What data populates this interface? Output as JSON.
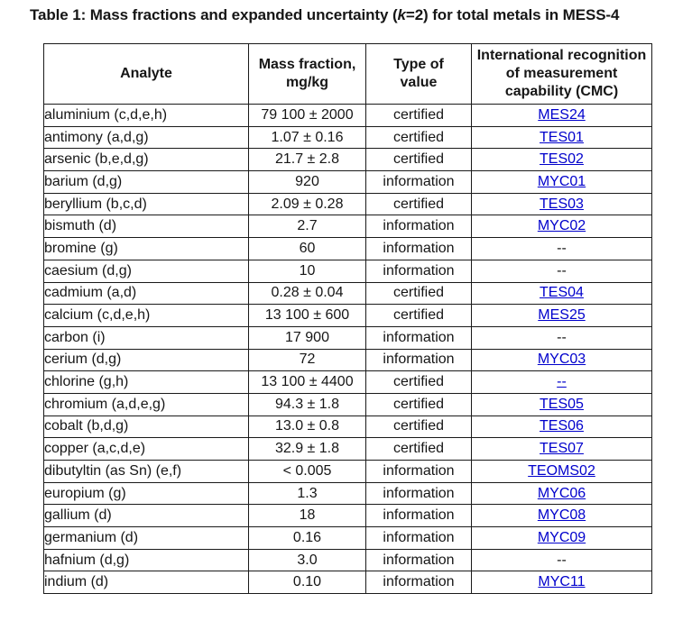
{
  "title": {
    "prefix": "Table 1: Mass fractions and expanded uncertainty (",
    "k": "k",
    "suffix": "=2) for total metals in MESS-4"
  },
  "colors": {
    "link_blue": "#0000cc",
    "text_black": "#161616",
    "border_black": "#1a1a1a",
    "background": "#ffffff"
  },
  "table": {
    "headers": {
      "analyte": "Analyte",
      "mass_fraction": "Mass fraction,\nmg/kg",
      "type_of_value": "Type of\nvalue",
      "cmc": "International recognition\nof measurement\ncapability (CMC)"
    },
    "rows": [
      {
        "analyte": "aluminium (c,d,e,h)",
        "mass_fraction": "79 100 ± 2000",
        "type_of_value": "certified",
        "cmc": "MES24",
        "cmc_is_link": true
      },
      {
        "analyte": "antimony (a,d,g)",
        "mass_fraction": "1.07 ± 0.16",
        "type_of_value": "certified",
        "cmc": "TES01",
        "cmc_is_link": true
      },
      {
        "analyte": "arsenic (b,e,d,g)",
        "mass_fraction": "21.7 ± 2.8",
        "type_of_value": "certified",
        "cmc": "TES02",
        "cmc_is_link": true
      },
      {
        "analyte": "barium (d,g)",
        "mass_fraction": "920",
        "type_of_value": "information",
        "cmc": "MYC01",
        "cmc_is_link": true
      },
      {
        "analyte": "beryllium (b,c,d)",
        "mass_fraction": "2.09 ± 0.28",
        "type_of_value": "certified",
        "cmc": "TES03",
        "cmc_is_link": true
      },
      {
        "analyte": "bismuth (d)",
        "mass_fraction": "2.7",
        "type_of_value": "information",
        "cmc": "MYC02",
        "cmc_is_link": true
      },
      {
        "analyte": "bromine (g)",
        "mass_fraction": "60",
        "type_of_value": "information",
        "cmc": "--",
        "cmc_is_link": false
      },
      {
        "analyte": "caesium (d,g)",
        "mass_fraction": "10",
        "type_of_value": "information",
        "cmc": "--",
        "cmc_is_link": false
      },
      {
        "analyte": "cadmium (a,d)",
        "mass_fraction": "0.28 ± 0.04",
        "type_of_value": "certified",
        "cmc": "TES04",
        "cmc_is_link": true
      },
      {
        "analyte": "calcium (c,d,e,h)",
        "mass_fraction": "13 100 ± 600",
        "type_of_value": "certified",
        "cmc": "MES25",
        "cmc_is_link": true
      },
      {
        "analyte": "carbon (i)",
        "mass_fraction": "17 900",
        "type_of_value": "information",
        "cmc": "--",
        "cmc_is_link": false
      },
      {
        "analyte": "cerium (d,g)",
        "mass_fraction": "72",
        "type_of_value": "information",
        "cmc": "MYC03",
        "cmc_is_link": true
      },
      {
        "analyte": "chlorine (g,h)",
        "mass_fraction": "13 100 ± 4400",
        "type_of_value": "certified",
        "cmc": "--",
        "cmc_is_link": true
      },
      {
        "analyte": "chromium (a,d,e,g)",
        "mass_fraction": "94.3 ± 1.8",
        "type_of_value": "certified",
        "cmc": "TES05",
        "cmc_is_link": true
      },
      {
        "analyte": "cobalt (b,d,g)",
        "mass_fraction": "13.0 ± 0.8",
        "type_of_value": "certified",
        "cmc": "TES06",
        "cmc_is_link": true
      },
      {
        "analyte": "copper (a,c,d,e)",
        "mass_fraction": "32.9 ± 1.8",
        "type_of_value": "certified",
        "cmc": "TES07",
        "cmc_is_link": true
      },
      {
        "analyte": "dibutyltin (as Sn) (e,f)",
        "mass_fraction": "< 0.005",
        "type_of_value": "information",
        "cmc": "TEOMS02",
        "cmc_is_link": true
      },
      {
        "analyte": "europium (g)",
        "mass_fraction": "1.3",
        "type_of_value": "information",
        "cmc": "MYC06",
        "cmc_is_link": true
      },
      {
        "analyte": "gallium (d)",
        "mass_fraction": "18",
        "type_of_value": "information",
        "cmc": "MYC08",
        "cmc_is_link": true
      },
      {
        "analyte": "germanium (d)",
        "mass_fraction": "0.16",
        "type_of_value": "information",
        "cmc": "MYC09",
        "cmc_is_link": true
      },
      {
        "analyte": "hafnium (d,g)",
        "mass_fraction": "3.0",
        "type_of_value": "information",
        "cmc": "--",
        "cmc_is_link": false
      },
      {
        "analyte": "indium (d)",
        "mass_fraction": "0.10",
        "type_of_value": "information",
        "cmc": "MYC11",
        "cmc_is_link": true
      }
    ]
  }
}
